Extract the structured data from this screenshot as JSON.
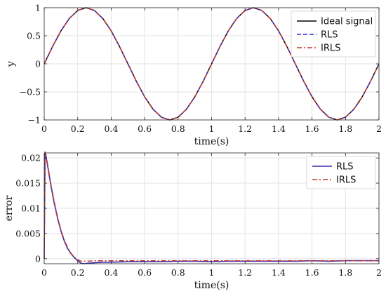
{
  "chart_data": [
    {
      "type": "line",
      "title": "",
      "xlabel": "time(s)",
      "ylabel": "y",
      "xlim": [
        0,
        2
      ],
      "ylim": [
        -1,
        1
      ],
      "grid": true,
      "legend": "top-right",
      "xticks": [
        0,
        0.2,
        0.4,
        0.6,
        0.8,
        1,
        1.2,
        1.4,
        1.6,
        1.8,
        2
      ],
      "xtick_labels": [
        "0",
        "0.2",
        "0.4",
        "0.6",
        "0.8",
        "1",
        "1.2",
        "1.4",
        "1.6",
        "1.8",
        "2"
      ],
      "yticks": [
        -1,
        -0.5,
        0,
        0.5,
        1
      ],
      "ytick_labels": [
        "−1",
        "−0.5",
        "0",
        "0.5",
        "1"
      ],
      "x": [
        0,
        0.05,
        0.1,
        0.15,
        0.2,
        0.25,
        0.3,
        0.35,
        0.4,
        0.45,
        0.5,
        0.55,
        0.6,
        0.65,
        0.7,
        0.75,
        0.8,
        0.85,
        0.9,
        0.95,
        1.0,
        1.05,
        1.1,
        1.15,
        1.2,
        1.25,
        1.3,
        1.35,
        1.4,
        1.45,
        1.5,
        1.55,
        1.6,
        1.65,
        1.7,
        1.75,
        1.8,
        1.85,
        1.9,
        1.95,
        2.0
      ],
      "series": [
        {
          "name": "Ideal signal",
          "color": "#000000",
          "style": "solid",
          "values": [
            0,
            0.309,
            0.588,
            0.809,
            0.951,
            1,
            0.951,
            0.809,
            0.588,
            0.309,
            0,
            -0.309,
            -0.588,
            -0.809,
            -0.951,
            -1,
            -0.951,
            -0.809,
            -0.588,
            -0.309,
            0,
            0.309,
            0.588,
            0.809,
            0.951,
            1,
            0.951,
            0.809,
            0.588,
            0.309,
            0,
            -0.309,
            -0.588,
            -0.809,
            -0.951,
            -1,
            -0.951,
            -0.809,
            -0.588,
            -0.309,
            0
          ]
        },
        {
          "name": "RLS",
          "color": "#2b2bd9",
          "style": "dashed",
          "values": [
            0,
            0.309,
            0.588,
            0.809,
            0.951,
            1,
            0.951,
            0.809,
            0.588,
            0.309,
            0,
            -0.309,
            -0.588,
            -0.809,
            -0.951,
            -1,
            -0.951,
            -0.809,
            -0.588,
            -0.309,
            0,
            0.309,
            0.588,
            0.809,
            0.951,
            1,
            0.951,
            0.809,
            0.588,
            0.309,
            0,
            -0.309,
            -0.588,
            -0.809,
            -0.951,
            -1,
            -0.951,
            -0.809,
            -0.588,
            -0.309,
            0
          ]
        },
        {
          "name": "IRLS",
          "color": "#c0392b",
          "style": "dashdot",
          "values": [
            0,
            0.309,
            0.588,
            0.809,
            0.951,
            1,
            0.951,
            0.809,
            0.588,
            0.309,
            0,
            -0.309,
            -0.588,
            -0.809,
            -0.951,
            -1,
            -0.951,
            -0.809,
            -0.588,
            -0.309,
            0,
            0.309,
            0.588,
            0.809,
            0.951,
            1,
            0.951,
            0.809,
            0.588,
            0.309,
            0,
            -0.309,
            -0.588,
            -0.809,
            -0.951,
            -1,
            -0.951,
            -0.809,
            -0.588,
            -0.309,
            0
          ]
        }
      ]
    },
    {
      "type": "line",
      "title": "",
      "xlabel": "time(s)",
      "ylabel": "error",
      "xlim": [
        0,
        2
      ],
      "ylim": [
        -0.001,
        0.021
      ],
      "grid": true,
      "legend": "top-right",
      "xticks": [
        0,
        0.2,
        0.4,
        0.6,
        0.8,
        1,
        1.2,
        1.4,
        1.6,
        1.8,
        2
      ],
      "xtick_labels": [
        "0",
        "0.2",
        "0.4",
        "0.6",
        "0.8",
        "1",
        "1.2",
        "1.4",
        "1.6",
        "1.8",
        "2"
      ],
      "yticks": [
        0,
        0.005,
        0.01,
        0.015,
        0.02
      ],
      "ytick_labels": [
        "0",
        "0.005",
        "0.01",
        "0.015",
        "0.02"
      ],
      "series": [
        {
          "name": "RLS",
          "color": "#3a2bb5",
          "style": "solid",
          "x": [
            0,
            0.005,
            0.01,
            0.02,
            0.04,
            0.06,
            0.08,
            0.1,
            0.12,
            0.14,
            0.16,
            0.18,
            0.2,
            0.22,
            0.24,
            0.26,
            0.3,
            0.35,
            0.4,
            0.5,
            0.6,
            0.7,
            0.8,
            0.9,
            1.0,
            1.1,
            1.2,
            1.3,
            1.4,
            1.5,
            1.6,
            1.7,
            1.8,
            1.9,
            2.0
          ],
          "values": [
            0.0,
            0.021,
            0.0205,
            0.0185,
            0.0145,
            0.011,
            0.008,
            0.0055,
            0.0035,
            0.002,
            0.001,
            0.0002,
            -0.0004,
            -0.0009,
            -0.001,
            -0.0009,
            -0.0008,
            -0.0007,
            -0.0007,
            -0.0006,
            -0.0006,
            -0.0006,
            -0.0005,
            -0.0005,
            -0.0006,
            -0.0005,
            -0.0005,
            -0.0005,
            -0.0005,
            -0.0005,
            -0.0004,
            -0.0005,
            -0.0004,
            -0.0004,
            -0.0004
          ]
        },
        {
          "name": "IRLS",
          "color": "#c0392b",
          "style": "dashdot",
          "x": [
            0,
            0.005,
            0.01,
            0.02,
            0.04,
            0.06,
            0.08,
            0.1,
            0.12,
            0.14,
            0.16,
            0.18,
            0.2,
            0.22,
            0.24,
            0.26,
            0.3,
            0.35,
            0.4,
            0.5,
            0.6,
            0.7,
            0.8,
            0.9,
            1.0,
            1.1,
            1.2,
            1.3,
            1.4,
            1.5,
            1.6,
            1.7,
            1.8,
            1.9,
            2.0
          ],
          "values": [
            0.0,
            0.0212,
            0.0207,
            0.0188,
            0.0148,
            0.0113,
            0.0082,
            0.0057,
            0.0037,
            0.0022,
            0.0011,
            0.0003,
            -0.0002,
            -0.0005,
            -0.0005,
            -0.0005,
            -0.0004,
            -0.0004,
            -0.0004,
            -0.0004,
            -0.0004,
            -0.0004,
            -0.0004,
            -0.0004,
            -0.0004,
            -0.0004,
            -0.0004,
            -0.0004,
            -0.0004,
            -0.0004,
            -0.0004,
            -0.0004,
            -0.0004,
            -0.0004,
            -0.0004
          ]
        }
      ]
    }
  ]
}
